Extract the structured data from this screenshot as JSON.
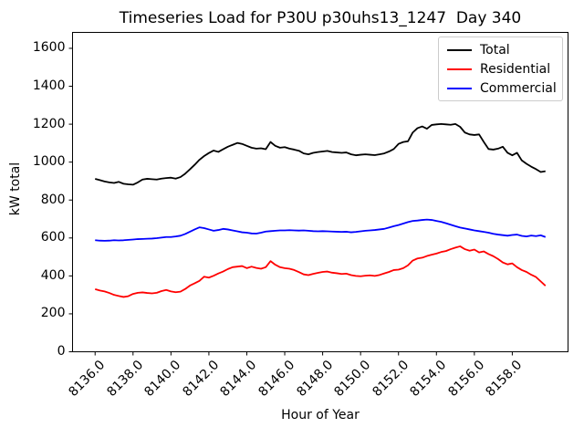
{
  "chart_data": {
    "type": "line",
    "title": "Timeseries Load for P30U p30uhs13_1247  Day 340",
    "xlabel": "Hour of Year",
    "ylabel": "kW total",
    "x_start": 8136.0,
    "x_step": 0.25,
    "n_points": 96,
    "xlim": [
      8134.81,
      8160.94
    ],
    "ylim": [
      0,
      1684
    ],
    "xticks": [
      8136,
      8138,
      8140,
      8142,
      8144,
      8146,
      8148,
      8150,
      8152,
      8154,
      8156,
      8158
    ],
    "xtick_labels": [
      "8136.0",
      "8138.0",
      "8140.0",
      "8142.0",
      "8144.0",
      "8146.0",
      "8148.0",
      "8150.0",
      "8152.0",
      "8154.0",
      "8156.0",
      "8158.0"
    ],
    "yticks": [
      0,
      200,
      400,
      600,
      800,
      1000,
      1200,
      1400,
      1600
    ],
    "ytick_labels": [
      "0",
      "200",
      "400",
      "600",
      "800",
      "1000",
      "1200",
      "1400",
      "1600"
    ],
    "grid": false,
    "legend_position": "upper right",
    "series": [
      {
        "name": "Total",
        "color": "#000000",
        "values": [
          912,
          905,
          898,
          893,
          890,
          896,
          886,
          883,
          881,
          893,
          908,
          912,
          910,
          908,
          913,
          916,
          918,
          913,
          921,
          939,
          962,
          986,
          1012,
          1032,
          1048,
          1061,
          1054,
          1068,
          1081,
          1091,
          1101,
          1096,
          1086,
          1076,
          1071,
          1073,
          1068,
          1106,
          1086,
          1076,
          1079,
          1071,
          1066,
          1060,
          1046,
          1041,
          1049,
          1053,
          1056,
          1059,
          1053,
          1051,
          1049,
          1051,
          1041,
          1036,
          1039,
          1041,
          1039,
          1037,
          1041,
          1046,
          1056,
          1069,
          1096,
          1106,
          1110,
          1156,
          1179,
          1188,
          1176,
          1196,
          1199,
          1201,
          1199,
          1197,
          1201,
          1186,
          1156,
          1146,
          1143,
          1146,
          1106,
          1069,
          1066,
          1071,
          1081,
          1049,
          1036,
          1049,
          1009,
          991,
          976,
          963,
          948,
          952
        ]
      },
      {
        "name": "Residential",
        "color": "#ff0000",
        "values": [
          330,
          323,
          318,
          310,
          300,
          294,
          289,
          293,
          305,
          311,
          313,
          310,
          308,
          311,
          320,
          326,
          318,
          314,
          317,
          331,
          349,
          361,
          374,
          396,
          391,
          401,
          413,
          423,
          436,
          446,
          449,
          452,
          441,
          449,
          442,
          438,
          446,
          478,
          459,
          446,
          441,
          438,
          431,
          420,
          408,
          404,
          411,
          416,
          421,
          423,
          417,
          414,
          410,
          412,
          404,
          400,
          398,
          401,
          403,
          400,
          405,
          413,
          421,
          431,
          433,
          441,
          456,
          481,
          492,
          496,
          505,
          512,
          518,
          526,
          531,
          541,
          549,
          556,
          541,
          533,
          539,
          524,
          529,
          515,
          504,
          489,
          471,
          461,
          466,
          446,
          431,
          421,
          406,
          394,
          371,
          348
        ]
      },
      {
        "name": "Commercial",
        "color": "#0000ff",
        "values": [
          588,
          586,
          585,
          586,
          588,
          587,
          588,
          590,
          592,
          594,
          595,
          596,
          597,
          599,
          602,
          605,
          605,
          608,
          612,
          621,
          633,
          645,
          656,
          652,
          645,
          638,
          642,
          648,
          645,
          640,
          635,
          630,
          628,
          624,
          623,
          628,
          634,
          636,
          638,
          640,
          640,
          641,
          640,
          639,
          640,
          638,
          636,
          635,
          636,
          635,
          634,
          633,
          632,
          633,
          630,
          632,
          635,
          638,
          640,
          642,
          645,
          648,
          655,
          662,
          668,
          676,
          684,
          690,
          692,
          695,
          697,
          695,
          690,
          685,
          678,
          670,
          662,
          655,
          650,
          645,
          640,
          636,
          632,
          628,
          622,
          618,
          615,
          612,
          616,
          618,
          611,
          608,
          613,
          610,
          614,
          605
        ]
      }
    ]
  }
}
